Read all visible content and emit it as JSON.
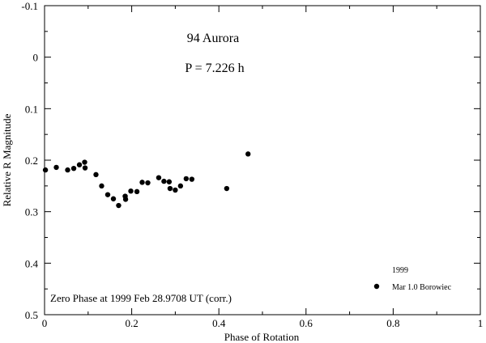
{
  "chart_data": {
    "type": "scatter",
    "title": "94 Aurora",
    "subtitle": "P = 7.226 h",
    "xlabel": "Phase of Rotation",
    "ylabel": "Relative R Magnitude",
    "xlim": [
      0,
      1
    ],
    "ylim": [
      -0.1,
      0.5
    ],
    "y_inverted": true,
    "grid": false,
    "x_ticks": [
      "0",
      "0.2",
      "0.4",
      "0.6",
      "0.8",
      "1"
    ],
    "x_tick_values": [
      0,
      0.2,
      0.4,
      0.6,
      0.8,
      1.0
    ],
    "y_ticks": [
      "-0.1",
      "0",
      "0.1",
      "0.2",
      "0.3",
      "0.4",
      "0.5"
    ],
    "y_tick_values": [
      -0.1,
      0,
      0.1,
      0.2,
      0.3,
      0.4,
      0.5
    ],
    "annotation": "Zero Phase at 1999 Feb 28.9708 UT (corr.)",
    "legend": {
      "placement": "bottom-right",
      "heading": "1999",
      "entries": [
        {
          "label": "Mar 1.0 Borowiec",
          "marker": "filled-circle"
        }
      ]
    },
    "series": [
      {
        "label": "Mar 1.0 Borowiec",
        "color": "#000000",
        "points": [
          [
            0.002,
            0.219
          ],
          [
            0.027,
            0.214
          ],
          [
            0.053,
            0.219
          ],
          [
            0.067,
            0.216
          ],
          [
            0.08,
            0.209
          ],
          [
            0.092,
            0.204
          ],
          [
            0.093,
            0.215
          ],
          [
            0.118,
            0.228
          ],
          [
            0.131,
            0.25
          ],
          [
            0.145,
            0.267
          ],
          [
            0.158,
            0.275
          ],
          [
            0.17,
            0.288
          ],
          [
            0.185,
            0.27
          ],
          [
            0.186,
            0.276
          ],
          [
            0.198,
            0.26
          ],
          [
            0.212,
            0.261
          ],
          [
            0.224,
            0.243
          ],
          [
            0.237,
            0.244
          ],
          [
            0.262,
            0.234
          ],
          [
            0.274,
            0.241
          ],
          [
            0.286,
            0.242
          ],
          [
            0.288,
            0.255
          ],
          [
            0.3,
            0.258
          ],
          [
            0.312,
            0.25
          ],
          [
            0.325,
            0.236
          ],
          [
            0.338,
            0.237
          ],
          [
            0.418,
            0.255
          ],
          [
            0.467,
            0.188
          ]
        ]
      }
    ]
  }
}
